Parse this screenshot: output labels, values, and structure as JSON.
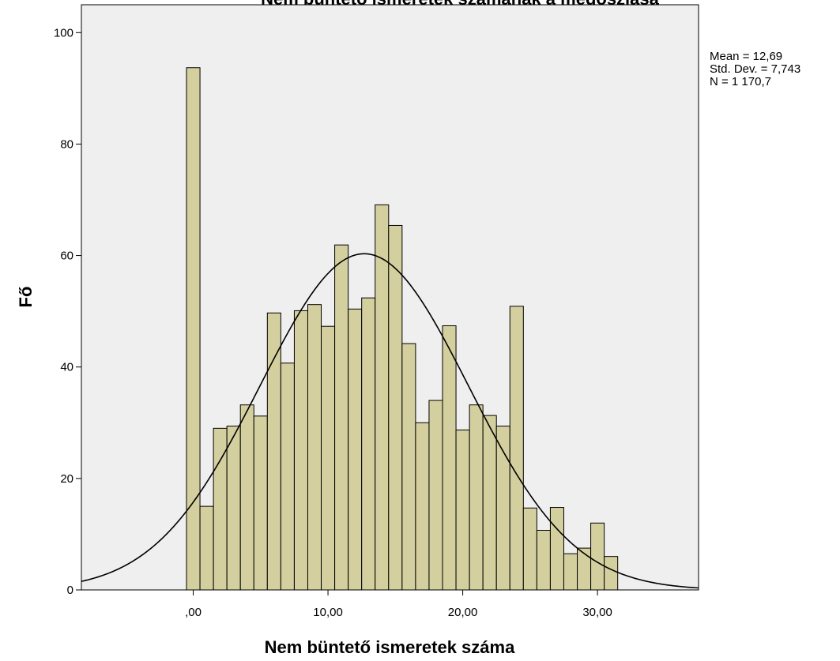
{
  "chart_data": {
    "type": "bar",
    "title": "Nem büntető ismeretek számának a megoszlása",
    "xlabel": "Nem büntető ismeretek száma",
    "ylabel": "Fő",
    "xlim": [
      -8.3,
      37.5
    ],
    "ylim": [
      0,
      105
    ],
    "x_tick_labels": [
      {
        "value": 0,
        "label": ",00"
      },
      {
        "value": 10,
        "label": "10,00"
      },
      {
        "value": 20,
        "label": "20,00"
      },
      {
        "value": 30,
        "label": "30,00"
      }
    ],
    "y_tick_labels": [
      {
        "value": 0,
        "label": "0"
      },
      {
        "value": 20,
        "label": "20"
      },
      {
        "value": 40,
        "label": "40"
      },
      {
        "value": 60,
        "label": "60"
      },
      {
        "value": 80,
        "label": "80"
      },
      {
        "value": 100,
        "label": "100"
      }
    ],
    "bin_width": 1,
    "bin_start": -0.5,
    "values": [
      93.7,
      15,
      29,
      29.4,
      33.2,
      31.2,
      49.7,
      40.7,
      50.1,
      51.2,
      47.3,
      61.9,
      50.4,
      52.4,
      69.1,
      65.4,
      44.2,
      30,
      34,
      47.4,
      28.7,
      33.2,
      31.3,
      29.4,
      50.9,
      14.7,
      10.7,
      14.8,
      6.5,
      7.5,
      12,
      6
    ],
    "normal_curve": {
      "mean": 12.69,
      "std_dev": 7.743,
      "n": 1170.7
    },
    "grid": false,
    "bar_color": "#d4cf9f",
    "plot_background": "#efefef",
    "stats_text": [
      "Mean = 12,69",
      "Std. Dev. = 7,743",
      "N = 1 170,7"
    ]
  }
}
